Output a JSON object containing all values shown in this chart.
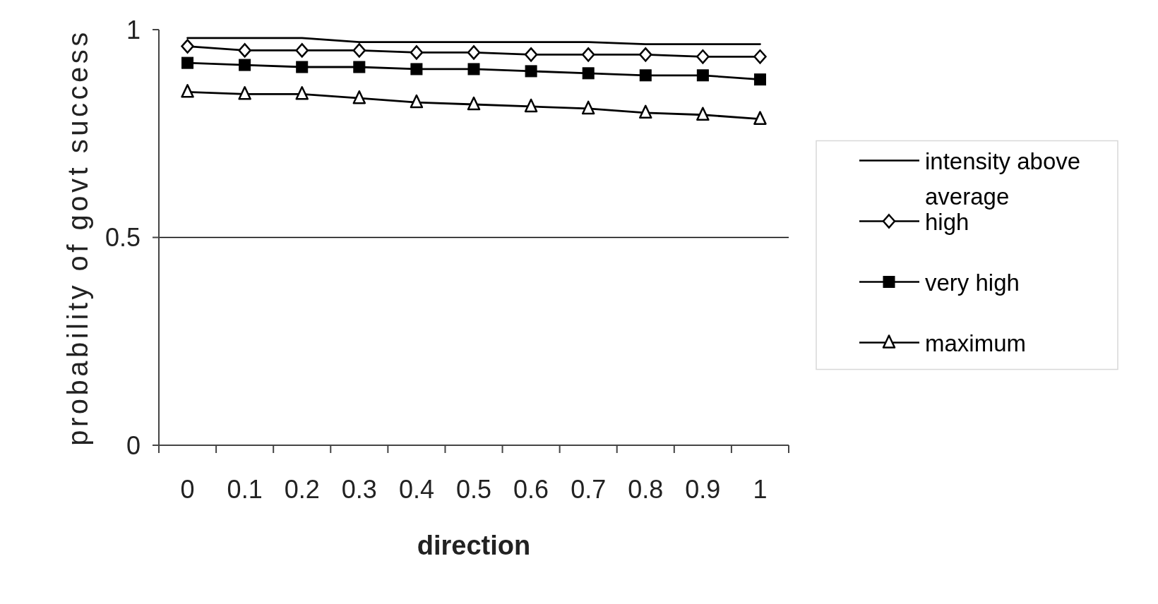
{
  "chart_data": {
    "type": "line",
    "xlabel": "direction",
    "ylabel": "probability of govt success",
    "categories": [
      "0",
      "0.1",
      "0.2",
      "0.3",
      "0.4",
      "0.5",
      "0.6",
      "0.7",
      "0.8",
      "0.9",
      "1"
    ],
    "ylim": [
      0,
      1
    ],
    "yticks": [
      0,
      0.5,
      1
    ],
    "legend": "right",
    "ref_lines": [
      {
        "axis": "y",
        "value": 0.5,
        "color": "#000000"
      }
    ],
    "series": [
      {
        "name": "intensity above average",
        "color": "#000000",
        "marker": "none",
        "values": [
          0.98,
          0.98,
          0.98,
          0.97,
          0.97,
          0.97,
          0.97,
          0.97,
          0.965,
          0.965,
          0.965
        ]
      },
      {
        "name": "high",
        "color": "#000000",
        "marker": "diamond",
        "values": [
          0.96,
          0.95,
          0.95,
          0.95,
          0.945,
          0.945,
          0.94,
          0.94,
          0.94,
          0.935,
          0.935
        ]
      },
      {
        "name": "very high",
        "color": "#000000",
        "marker": "square",
        "values": [
          0.92,
          0.915,
          0.91,
          0.91,
          0.905,
          0.905,
          0.9,
          0.895,
          0.89,
          0.89,
          0.88
        ]
      },
      {
        "name": "maximum",
        "color": "#000000",
        "marker": "triangle",
        "values": [
          0.85,
          0.845,
          0.845,
          0.835,
          0.825,
          0.82,
          0.815,
          0.81,
          0.8,
          0.795,
          0.785
        ]
      }
    ]
  }
}
